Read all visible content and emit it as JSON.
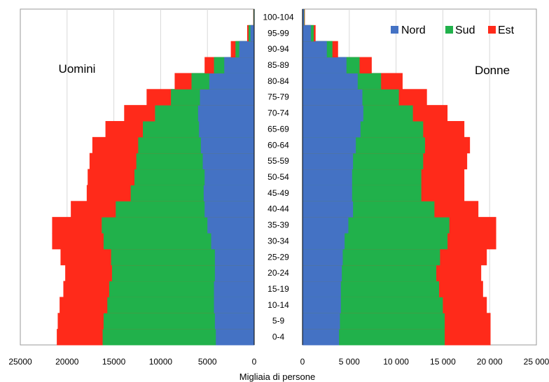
{
  "chart_data": {
    "type": "bar",
    "subtype": "population-pyramid",
    "xlabel": "Migliaia di persone",
    "left_label": "Uomini",
    "right_label": "Donne",
    "age_groups": [
      "0-4",
      "5-9",
      "10-14",
      "15-19",
      "20-24",
      "25-29",
      "30-34",
      "35-39",
      "40-44",
      "45-49",
      "50-54",
      "55-59",
      "60-64",
      "65-69",
      "70-74",
      "75-79",
      "80-84",
      "85-89",
      "90-94",
      "95-99",
      "100-104"
    ],
    "left_ticks": [
      "25000",
      "20000",
      "15000",
      "10000",
      "5000",
      "0"
    ],
    "right_ticks": [
      "0",
      "5 000",
      "10 000",
      "15 000",
      "20 000",
      "25 000"
    ],
    "xlim": [
      0,
      25000
    ],
    "stacked": true,
    "legend_position": "top-right",
    "series_colors": {
      "Nord": "#4472c4",
      "Sud": "#21b14b",
      "Est": "#ff2a1a"
    },
    "series_order": [
      "Nord",
      "Sud",
      "Est"
    ],
    "men_cumulative": {
      "Nord": [
        4100,
        4200,
        4300,
        4300,
        4200,
        4200,
        4600,
        5000,
        5300,
        5400,
        5300,
        5500,
        5700,
        5900,
        6000,
        5800,
        4800,
        3200,
        1600,
        400,
        50
      ],
      "Sud": [
        16200,
        16100,
        15700,
        15500,
        15200,
        15300,
        16100,
        16300,
        14800,
        13200,
        12800,
        12600,
        12400,
        11900,
        10600,
        8900,
        6700,
        4300,
        2000,
        600,
        80
      ],
      "Est": [
        21100,
        21000,
        20800,
        20400,
        20200,
        20700,
        21600,
        21600,
        19600,
        17900,
        17800,
        17600,
        17300,
        15900,
        13900,
        11500,
        8500,
        5300,
        2500,
        750,
        100
      ]
    },
    "women_cumulative": {
      "Nord": [
        3900,
        4000,
        4100,
        4100,
        4200,
        4300,
        4500,
        4900,
        5400,
        5300,
        5300,
        5400,
        5700,
        6200,
        6500,
        6400,
        5900,
        4700,
        2600,
        900,
        150
      ],
      "Sud": [
        15200,
        15200,
        15000,
        14600,
        14300,
        14700,
        15500,
        15700,
        14100,
        12700,
        12700,
        12900,
        13100,
        12900,
        11800,
        10300,
        8400,
        6100,
        3200,
        1200,
        200
      ],
      "Est": [
        20100,
        20100,
        19700,
        19300,
        19100,
        19700,
        20700,
        20700,
        18800,
        17300,
        17300,
        17600,
        17900,
        17300,
        15500,
        13300,
        10700,
        7400,
        3800,
        1400,
        250
      ]
    }
  },
  "legend": {
    "items": [
      {
        "label": "Nord",
        "color": "#4472c4"
      },
      {
        "label": "Sud",
        "color": "#21b14b"
      },
      {
        "label": "Est",
        "color": "#ff2a1a"
      }
    ]
  }
}
